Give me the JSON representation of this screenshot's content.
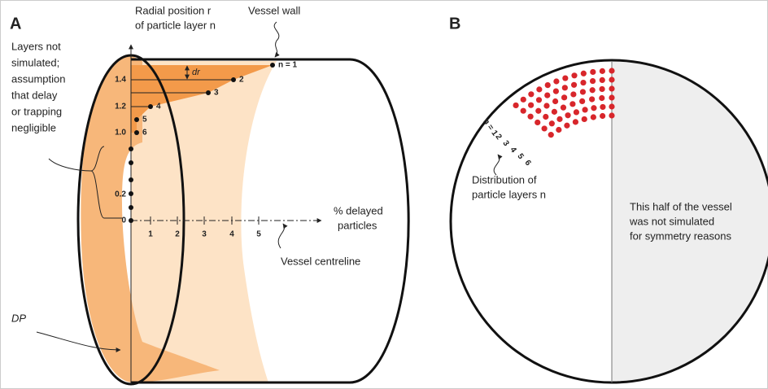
{
  "panel_a": {
    "label": "A",
    "axis_title": [
      "Radial position r",
      "of particle layer n"
    ],
    "vessel_wall": "Vessel wall",
    "layer_labels": [
      "n = 1",
      "2",
      "3",
      "4",
      "5",
      "6"
    ],
    "dr": "dr",
    "radial_ticks": [
      "1.4",
      "1.2",
      "1.0",
      "0.2",
      "0"
    ],
    "delay_ticks": [
      "1",
      "2",
      "3",
      "4",
      "5"
    ],
    "delay_title": [
      "% delayed",
      "particles"
    ],
    "centreline": "Vessel centreline",
    "note": [
      "Layers not",
      "simulated;",
      "assumption",
      "that delay",
      "or trapping",
      "negligible"
    ],
    "dp": "DP"
  },
  "panel_b": {
    "label": "B",
    "layer_labels": [
      "n = 1",
      "2",
      "3",
      "4",
      "5",
      "6"
    ],
    "distribution": [
      "Distribution of",
      "particle layers n"
    ],
    "symmetry_note": [
      "This half of the vessel",
      "was not simulated",
      "for symmetry reasons"
    ]
  }
}
